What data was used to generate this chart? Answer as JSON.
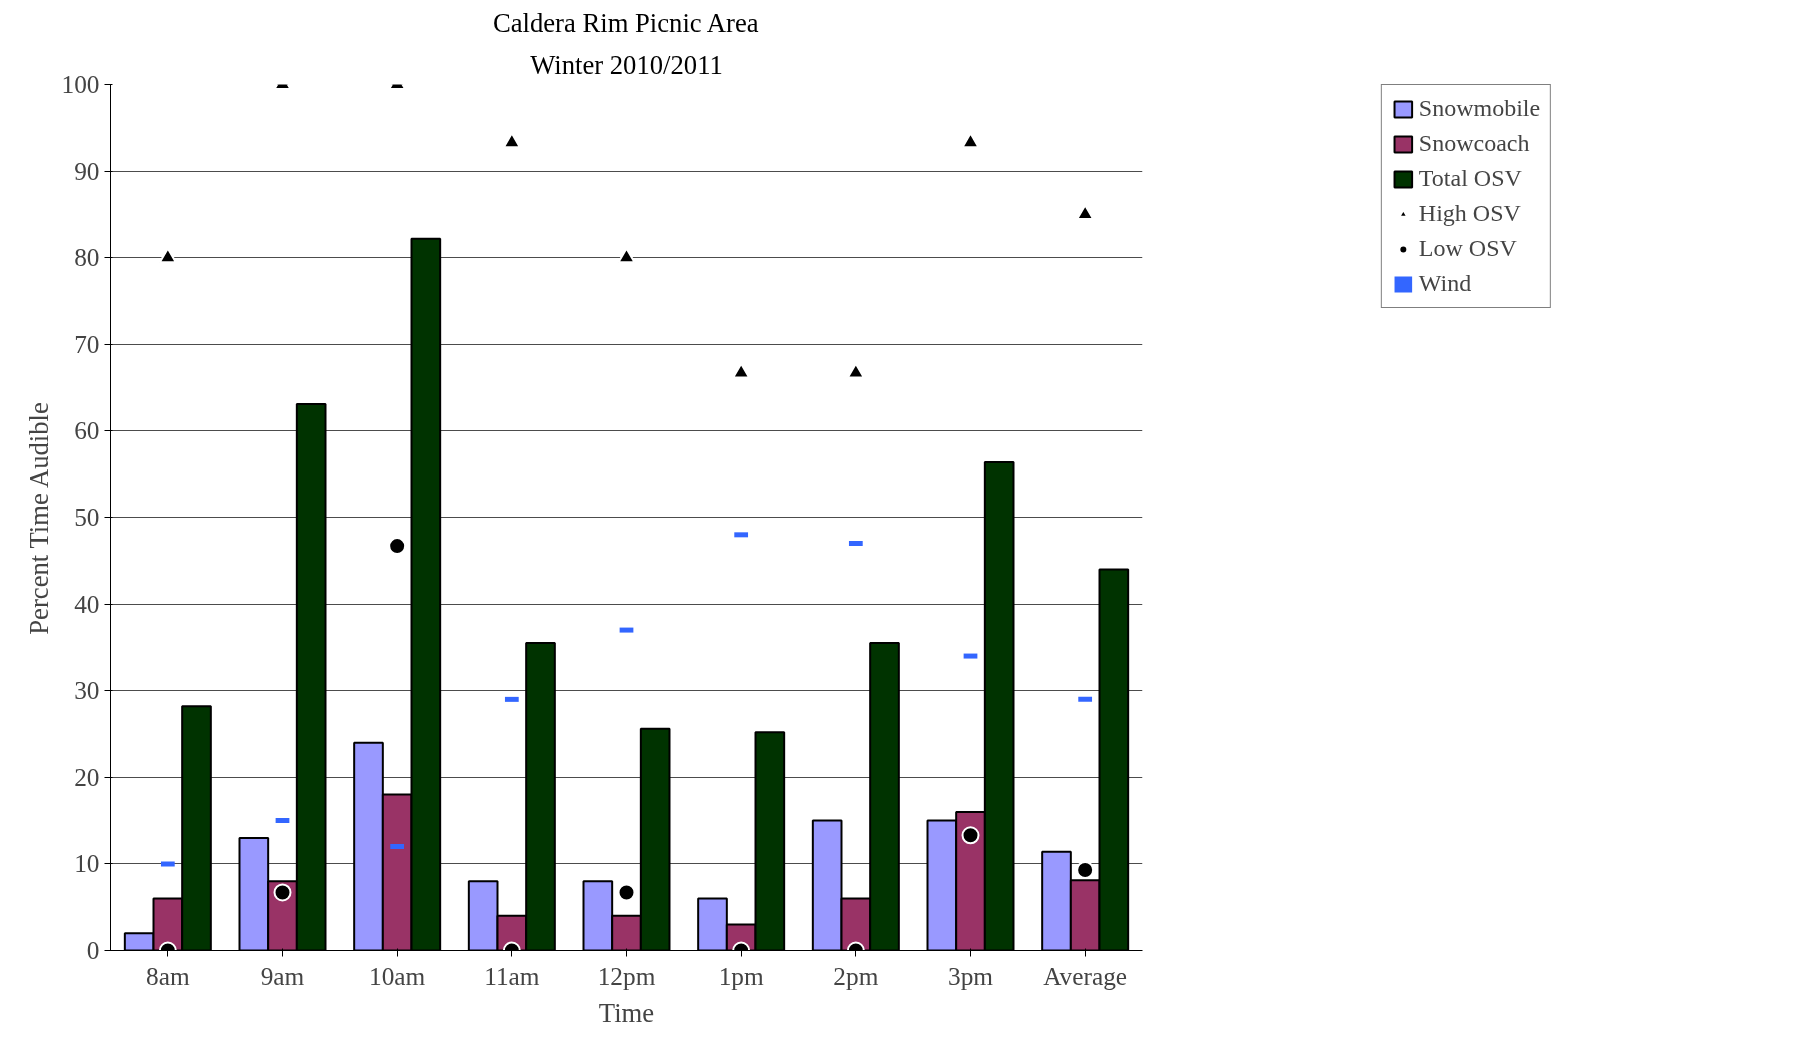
{
  "chart_data": {
    "type": "bar",
    "title": "Caldera Rim Picnic Area",
    "subtitle": "Winter 2010/2011",
    "xlabel": "Time",
    "ylabel": "Percent Time Audible",
    "categories": [
      "8am",
      "9am",
      "10am",
      "11am",
      "12pm",
      "1pm",
      "2pm",
      "3pm",
      "Average"
    ],
    "series": [
      {
        "name": "Snowmobile",
        "color": "#9999ff",
        "values": [
          2,
          13,
          24,
          8,
          8,
          6,
          15,
          15,
          11.4
        ]
      },
      {
        "name": "Snowcoach",
        "color": "#993366",
        "values": [
          6,
          8,
          18,
          4,
          4,
          3,
          6,
          16,
          8.1
        ]
      },
      {
        "name": "Total OSV",
        "color": "#003300",
        "values": [
          28.2,
          63.1,
          82.2,
          35.5,
          25.6,
          25.2,
          35.5,
          56.4,
          44
        ]
      },
      {
        "name": "High OSV",
        "type": "scatter",
        "marker": "triangle",
        "color": "#000000",
        "values": [
          80,
          100,
          100,
          93.3,
          80,
          66.7,
          66.7,
          93.3,
          85
        ]
      },
      {
        "name": "Low OSV",
        "type": "scatter",
        "marker": "circle",
        "color": "#000000",
        "values": [
          0,
          6.7,
          46.7,
          0,
          6.7,
          0,
          0,
          13.3,
          9.3
        ]
      },
      {
        "name": "Wind",
        "type": "scatter",
        "color": "#3366ff",
        "values": [
          10,
          15,
          12,
          29,
          37,
          48,
          47,
          34,
          29
        ]
      }
    ],
    "ylim": [
      0,
      100
    ],
    "yticks": [
      0,
      10,
      20,
      30,
      40,
      50,
      60,
      70,
      80,
      90,
      100
    ],
    "grid": "y",
    "legend": "top right"
  }
}
